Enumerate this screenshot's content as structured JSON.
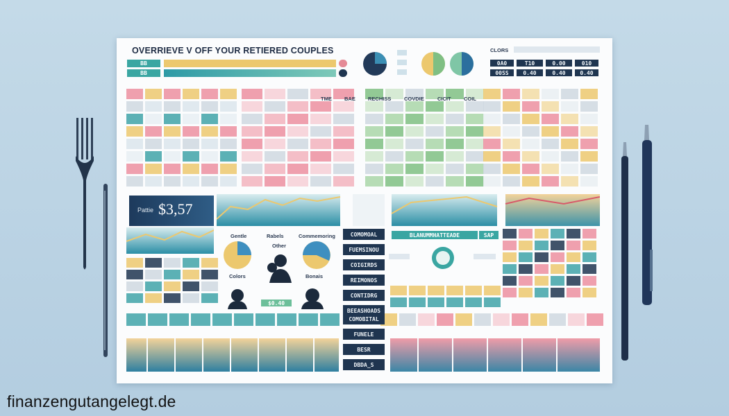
{
  "title": "OVERRIEVE V OFF YOUR RETIERED COUPLES",
  "watermark": "finanzengutangelegt.de",
  "top_left_inputs": [
    "BB",
    "BB"
  ],
  "top_right_header": "CLORS",
  "top_right_table": [
    [
      "0A0",
      "T10",
      "0.00",
      "010"
    ],
    [
      "00SS",
      "0.40",
      "0.40",
      "0.40"
    ]
  ],
  "price_label": "Pattie",
  "price_value": "$3,57",
  "legend_labels": {
    "gentle": "Gentle",
    "rabels": "Rabels",
    "other": "Other",
    "colors": "Colors",
    "commemoring": "Commemoring",
    "bonais": "Bonais",
    "cash_value": "$0.40"
  },
  "side_labels_mid": [
    "COMOMOAL",
    "FUEMSINOU",
    "COIGIRDS",
    "REIMONOS",
    "CONTIDRG",
    "BEEASHOADS"
  ],
  "side_labels_bottom": [
    "COMOBITAL",
    "FUNELE",
    "BESR",
    "DBDA_S"
  ],
  "recess_headers": [
    "RECHISS",
    "COVDIE",
    "CICIT",
    "COIL"
  ],
  "pink_headers": [
    "TME",
    "BAE"
  ],
  "banner_label": "BLANUMMHATTEADE",
  "banner_value": "SAP",
  "colors": {
    "pink": "#ec8fa0",
    "teal": "#3fa3a8",
    "yellow": "#ecc86e",
    "green": "#7fbf83",
    "navy": "#1f3550",
    "grey": "#cfd8e0"
  }
}
